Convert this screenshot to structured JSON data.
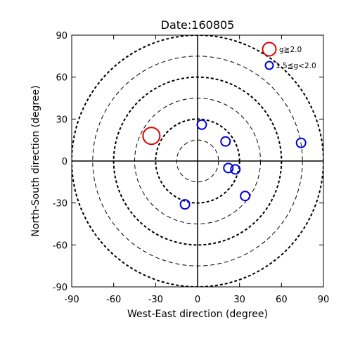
{
  "chart_data": {
    "type": "scatter",
    "title": "Date:160805",
    "xlabel": "West-East direction (degree)",
    "ylabel": "North-South direction (degree)",
    "xlim": [
      -90,
      90
    ],
    "ylim": [
      -90,
      90
    ],
    "xticks": [
      -90,
      -60,
      -30,
      0,
      30,
      60,
      90
    ],
    "yticks": [
      -90,
      -60,
      -30,
      0,
      30,
      60,
      90
    ],
    "xtick_labels": [
      "-90",
      "-60",
      "-30",
      "0",
      "30",
      "60",
      "90"
    ],
    "ytick_labels": [
      "-90",
      "-60",
      "-30",
      "0",
      "30",
      "60",
      "90"
    ],
    "grid": "concentric dashed circles",
    "circle_radii": [
      15,
      30,
      45,
      60,
      75,
      90
    ],
    "legend_position": "top-right",
    "series": [
      {
        "name": "g≧2.0",
        "color": "#dd0000",
        "marker": "open-circle-large",
        "points": [
          {
            "x": -33,
            "y": 18
          }
        ]
      },
      {
        "name": "1.5≦g<2.0",
        "color": "#0000dd",
        "marker": "open-circle-small",
        "points": [
          {
            "x": 3,
            "y": 26
          },
          {
            "x": 20,
            "y": 14
          },
          {
            "x": 74,
            "y": 13
          },
          {
            "x": 22,
            "y": -5
          },
          {
            "x": 27,
            "y": -6
          },
          {
            "x": -9,
            "y": -31
          },
          {
            "x": 34,
            "y": -25
          }
        ]
      }
    ]
  }
}
